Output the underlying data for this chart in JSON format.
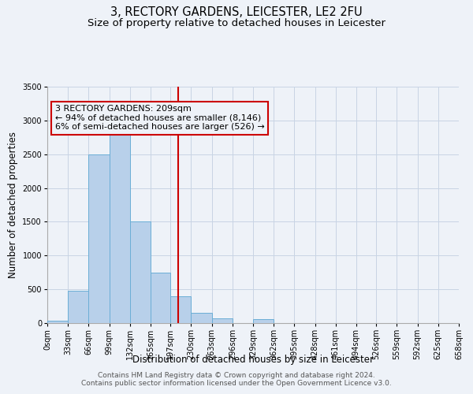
{
  "title": "3, RECTORY GARDENS, LEICESTER, LE2 2FU",
  "subtitle": "Size of property relative to detached houses in Leicester",
  "xlabel": "Distribution of detached houses by size in Leicester",
  "ylabel": "Number of detached properties",
  "bin_edges": [
    0,
    33,
    66,
    99,
    132,
    165,
    197,
    230,
    263,
    296,
    329,
    362,
    395,
    428,
    461,
    494,
    526,
    559,
    592,
    625,
    658
  ],
  "counts": [
    30,
    480,
    2500,
    2800,
    1500,
    750,
    400,
    150,
    70,
    0,
    60,
    0,
    0,
    0,
    0,
    0,
    0,
    0,
    0,
    0
  ],
  "property_size": 209,
  "bar_color": "#b8d0ea",
  "bar_edge_color": "#6baed6",
  "vline_color": "#cc0000",
  "annotation_box_edge_color": "#cc0000",
  "annotation_text": "3 RECTORY GARDENS: 209sqm\n← 94% of detached houses are smaller (8,146)\n6% of semi-detached houses are larger (526) →",
  "ylim": [
    0,
    3500
  ],
  "yticks": [
    0,
    500,
    1000,
    1500,
    2000,
    2500,
    3000,
    3500
  ],
  "tick_labels": [
    "0sqm",
    "33sqm",
    "66sqm",
    "99sqm",
    "132sqm",
    "165sqm",
    "197sqm",
    "230sqm",
    "263sqm",
    "296sqm",
    "329sqm",
    "362sqm",
    "395sqm",
    "428sqm",
    "461sqm",
    "494sqm",
    "526sqm",
    "559sqm",
    "592sqm",
    "625sqm",
    "658sqm"
  ],
  "footer_line1": "Contains HM Land Registry data © Crown copyright and database right 2024.",
  "footer_line2": "Contains public sector information licensed under the Open Government Licence v3.0.",
  "background_color": "#eef2f8",
  "grid_color": "#c8d4e4",
  "title_fontsize": 10.5,
  "subtitle_fontsize": 9.5,
  "axis_label_fontsize": 8.5,
  "tick_fontsize": 7,
  "annotation_fontsize": 8,
  "footer_fontsize": 6.5
}
